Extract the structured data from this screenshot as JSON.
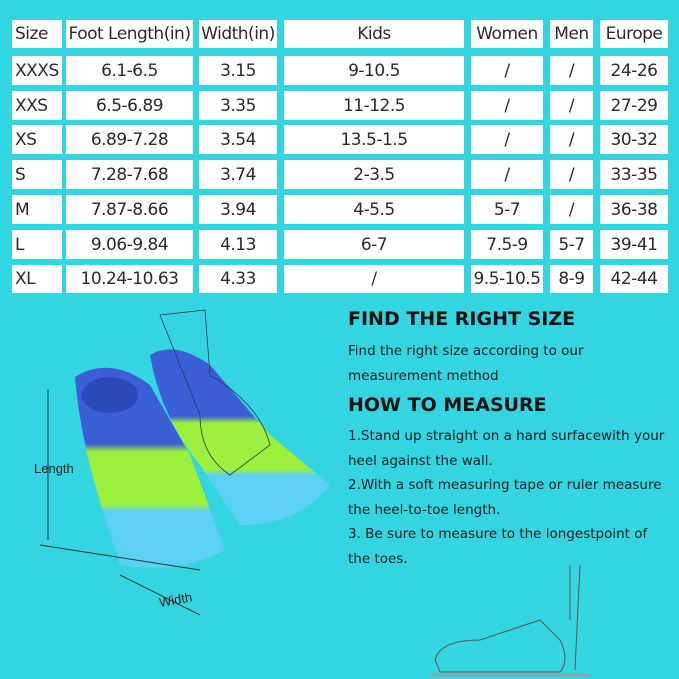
{
  "table": {
    "headers": [
      "Size",
      "Foot Length(in)",
      "Width(in)",
      "Kids",
      "Women",
      "Men",
      "Europe"
    ],
    "rows": [
      [
        "XXXS",
        "6.1-6.5",
        "3.15",
        "9-10.5",
        "/",
        "/",
        "24-26"
      ],
      [
        "XXS",
        "6.5-6.89",
        "3.35",
        "11-12.5",
        "/",
        "/",
        "27-29"
      ],
      [
        "XS",
        "6.89-7.28",
        "3.54",
        "13.5-1.5",
        "/",
        "/",
        "30-32"
      ],
      [
        "S",
        "7.28-7.68",
        "3.74",
        "2-3.5",
        "/",
        "/",
        "33-35"
      ],
      [
        "M",
        "7.87-8.66",
        "3.94",
        "4-5.5",
        "5-7",
        "/",
        "36-38"
      ],
      [
        "L",
        "9.06-9.84",
        "4.13",
        "6-7",
        "7.5-9",
        "5-7",
        "39-41"
      ],
      [
        "XL",
        "10.24-10.63",
        "4.33",
        "/",
        "9.5-10.5",
        "8-9",
        "42-44"
      ]
    ]
  },
  "find_size": {
    "title": "FIND THE RIGHT SIZE",
    "text": "Find the right size according to our measurement method"
  },
  "how_to": {
    "title": "HOW TO MEASURE",
    "steps": [
      "1.Stand up straight on a hard surfacewith your heel against the wall.",
      "2.With a soft measuring tape or ruler measure the heel-to-toe length.",
      "3. Be sure to measure to the longestpoint of the toes."
    ]
  },
  "illustration": {
    "length_label": "Length",
    "width_label": "Width",
    "fin_colors": {
      "blue": "#3a5fd6",
      "green": "#9cf03c",
      "light_blue": "#5ccff5"
    }
  },
  "colors": {
    "background": "#33d6e0",
    "cell": "#ffffff"
  }
}
